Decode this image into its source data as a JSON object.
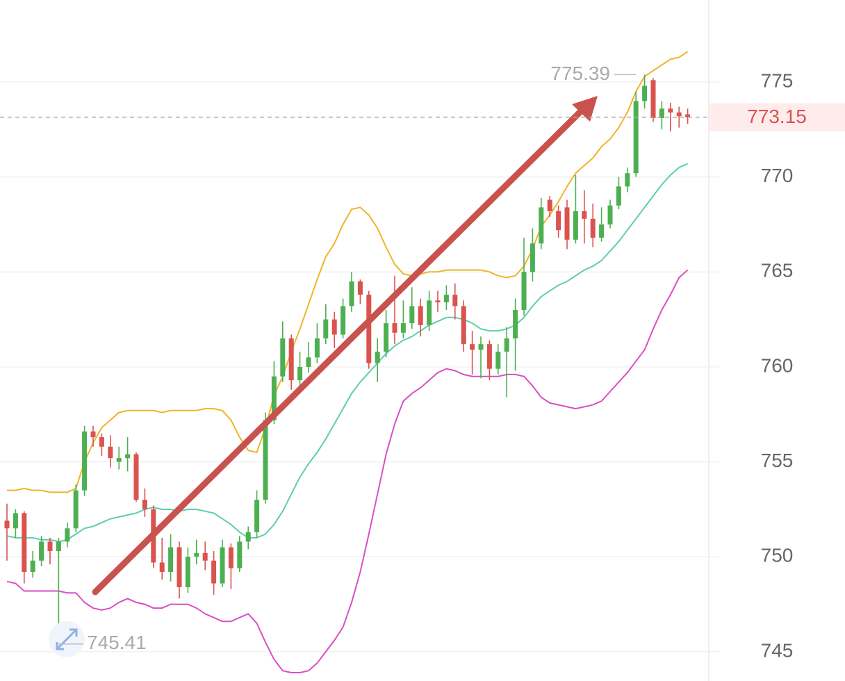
{
  "chart_data": {
    "type": "candlestick",
    "ylim": [
      743.46,
      779.32
    ],
    "yticks": [
      745,
      750,
      755,
      760,
      765,
      770,
      775
    ],
    "grid": true,
    "up_color": "#4caf50",
    "down_color": "#d9534f",
    "last_price": 773.15,
    "high": 775.39,
    "low": 745.41,
    "ohlc": [
      [
        751.9,
        752.8,
        749.8,
        751.5
      ],
      [
        751.5,
        752.5,
        751.0,
        752.3
      ],
      [
        752.3,
        752.4,
        748.6,
        749.2
      ],
      [
        749.2,
        750.3,
        748.9,
        749.8
      ],
      [
        749.8,
        751.1,
        749.5,
        750.8
      ],
      [
        750.8,
        751.0,
        749.6,
        750.3
      ],
      [
        750.3,
        751.0,
        745.41,
        750.8
      ],
      [
        750.8,
        751.8,
        750.5,
        751.5
      ],
      [
        751.5,
        753.8,
        751.3,
        753.5
      ],
      [
        753.5,
        756.9,
        753.2,
        756.6
      ],
      [
        756.6,
        756.9,
        755.8,
        756.3
      ],
      [
        756.3,
        756.5,
        755.3,
        755.8
      ],
      [
        755.8,
        756.4,
        754.7,
        755.2
      ],
      [
        755.0,
        755.8,
        754.6,
        755.2
      ],
      [
        755.2,
        756.3,
        754.5,
        755.4
      ],
      [
        755.4,
        755.5,
        752.9,
        753.0
      ],
      [
        753.0,
        753.6,
        752.1,
        752.5
      ],
      [
        752.5,
        752.7,
        749.4,
        749.7
      ],
      [
        749.7,
        751.0,
        748.8,
        749.2
      ],
      [
        749.2,
        751.2,
        748.7,
        750.5
      ],
      [
        750.5,
        750.8,
        747.8,
        748.4
      ],
      [
        748.4,
        750.5,
        748.1,
        750.0
      ],
      [
        750.0,
        750.9,
        749.6,
        750.2
      ],
      [
        750.2,
        750.8,
        749.3,
        749.8
      ],
      [
        749.8,
        750.3,
        748.0,
        748.6
      ],
      [
        748.6,
        750.9,
        748.4,
        750.5
      ],
      [
        750.5,
        750.7,
        748.3,
        749.4
      ],
      [
        749.4,
        751.1,
        749.2,
        750.8
      ],
      [
        750.8,
        751.6,
        750.4,
        751.3
      ],
      [
        751.3,
        753.5,
        751.0,
        753.0
      ],
      [
        753.0,
        757.6,
        752.8,
        757.2
      ],
      [
        757.2,
        760.3,
        757.0,
        759.5
      ],
      [
        759.5,
        762.4,
        759.2,
        761.5
      ],
      [
        761.5,
        761.7,
        758.8,
        759.3
      ],
      [
        759.3,
        760.8,
        759.0,
        760.0
      ],
      [
        760.0,
        761.3,
        759.7,
        760.5
      ],
      [
        760.5,
        762.3,
        760.2,
        761.5
      ],
      [
        761.5,
        763.3,
        761.2,
        762.5
      ],
      [
        762.5,
        762.9,
        761.0,
        761.7
      ],
      [
        761.7,
        763.6,
        761.5,
        763.2
      ],
      [
        763.2,
        765.0,
        762.9,
        764.5
      ],
      [
        764.5,
        764.6,
        763.3,
        763.8
      ],
      [
        763.8,
        764.0,
        759.9,
        760.2
      ],
      [
        760.2,
        761.5,
        759.2,
        760.8
      ],
      [
        760.8,
        763.0,
        760.5,
        762.3
      ],
      [
        762.3,
        764.8,
        761.2,
        761.8
      ],
      [
        761.8,
        763.5,
        761.5,
        762.3
      ],
      [
        762.3,
        764.2,
        762.0,
        763.2
      ],
      [
        763.2,
        763.6,
        761.6,
        762.2
      ],
      [
        762.2,
        764.0,
        761.9,
        763.5
      ],
      [
        763.5,
        764.0,
        762.9,
        763.4
      ],
      [
        763.4,
        764.3,
        763.0,
        763.8
      ],
      [
        763.8,
        764.4,
        762.5,
        763.2
      ],
      [
        763.2,
        763.5,
        760.8,
        761.2
      ],
      [
        761.2,
        761.9,
        759.6,
        760.9
      ],
      [
        760.9,
        761.6,
        759.4,
        761.2
      ],
      [
        761.2,
        761.4,
        759.3,
        759.9
      ],
      [
        759.9,
        761.2,
        759.6,
        760.8
      ],
      [
        760.8,
        762.1,
        758.4,
        761.5
      ],
      [
        761.5,
        763.6,
        759.8,
        763.0
      ],
      [
        763.0,
        766.8,
        762.7,
        765.0
      ],
      [
        765.0,
        767.3,
        764.5,
        766.5
      ],
      [
        766.5,
        768.9,
        766.2,
        768.4
      ],
      [
        768.8,
        769.0,
        767.9,
        768.2
      ],
      [
        768.2,
        768.5,
        766.8,
        767.2
      ],
      [
        768.4,
        768.8,
        766.2,
        766.7
      ],
      [
        766.7,
        770.1,
        766.5,
        768.2
      ],
      [
        768.2,
        769.3,
        766.5,
        767.8
      ],
      [
        767.8,
        768.6,
        766.3,
        766.8
      ],
      [
        766.8,
        768.4,
        766.6,
        767.5
      ],
      [
        767.5,
        768.8,
        767.3,
        768.5
      ],
      [
        768.5,
        770.0,
        768.3,
        769.5
      ],
      [
        769.5,
        770.5,
        769.2,
        770.2
      ],
      [
        770.2,
        774.5,
        770.0,
        774.0
      ],
      [
        774.0,
        775.39,
        773.6,
        774.8
      ],
      [
        775.1,
        775.2,
        772.9,
        773.1
      ],
      [
        773.1,
        774.0,
        772.5,
        773.6
      ],
      [
        773.6,
        773.9,
        772.4,
        773.4
      ],
      [
        773.4,
        773.7,
        772.6,
        773.2
      ],
      [
        773.3,
        773.6,
        772.8,
        773.15
      ]
    ],
    "bands": [
      {
        "color": "#f0b429",
        "values": [
          753.5,
          753.5,
          753.6,
          753.5,
          753.5,
          753.4,
          753.4,
          753.4,
          753.6,
          755,
          756,
          756.8,
          757.2,
          757.6,
          757.7,
          757.7,
          757.7,
          757.7,
          757.6,
          757.7,
          757.7,
          757.7,
          757.7,
          757.8,
          757.8,
          757.7,
          757.2,
          756.3,
          755.6,
          755.5,
          756.8,
          758.5,
          759.5,
          760.8,
          762.0,
          763.3,
          764.6,
          765.8,
          766.5,
          767.5,
          768.3,
          768.4,
          768.0,
          767.3,
          766.3,
          765.4,
          764.9,
          764.8,
          764.9,
          765.0,
          765.0,
          765.1,
          765.1,
          765.1,
          765.1,
          765.1,
          765.0,
          764.8,
          764.7,
          764.8,
          765.3,
          766.2,
          767.4,
          768.0,
          768.7,
          769.5,
          770.2,
          770.6,
          771.0,
          771.6,
          772.0,
          772.6,
          773.4,
          774.5,
          775.3,
          775.6,
          775.9,
          776.2,
          776.3,
          776.6
        ]
      },
      {
        "color": "#5ccfa8",
        "values": [
          751.1,
          751.0,
          751.0,
          751.0,
          750.9,
          750.9,
          750.8,
          750.9,
          751.2,
          751.5,
          751.6,
          751.8,
          752.0,
          752.1,
          752.2,
          752.3,
          752.5,
          752.6,
          752.5,
          752.5,
          752.4,
          752.5,
          752.5,
          752.4,
          752.3,
          752.0,
          751.7,
          751.3,
          751.0,
          751.0,
          751.2,
          751.7,
          752.4,
          753.3,
          754.2,
          754.9,
          755.5,
          756.2,
          757.0,
          757.8,
          758.6,
          759.2,
          759.7,
          760.2,
          760.7,
          761.1,
          761.4,
          761.6,
          761.9,
          762.2,
          762.4,
          762.6,
          762.6,
          762.5,
          762.3,
          762.0,
          761.9,
          761.9,
          762.0,
          762.2,
          762.6,
          763.2,
          763.7,
          764.0,
          764.3,
          764.5,
          764.8,
          765.1,
          765.3,
          765.6,
          766.1,
          766.6,
          767.2,
          767.8,
          768.4,
          769.0,
          769.6,
          770.1,
          770.5,
          770.7
        ]
      },
      {
        "color": "#d94fc4",
        "values": [
          748.7,
          748.6,
          748.2,
          748.2,
          748.2,
          748.2,
          748.2,
          748.1,
          748.1,
          747.6,
          747.3,
          747.2,
          747.3,
          747.6,
          747.8,
          747.6,
          747.5,
          747.3,
          747.3,
          747.5,
          747.5,
          747.5,
          747.3,
          747.0,
          746.8,
          746.6,
          746.6,
          746.8,
          747.0,
          746.5,
          745.5,
          744.6,
          744.0,
          743.9,
          743.9,
          744.0,
          744.4,
          745.0,
          745.6,
          746.3,
          747.6,
          749.2,
          751.2,
          753.3,
          755.4,
          757.0,
          758.2,
          758.6,
          758.9,
          759.3,
          759.7,
          759.9,
          759.8,
          759.6,
          759.5,
          759.5,
          759.5,
          759.5,
          759.6,
          759.6,
          759.5,
          759.0,
          758.4,
          758.1,
          758.0,
          757.9,
          757.8,
          757.9,
          758.0,
          758.2,
          758.7,
          759.2,
          759.7,
          760.3,
          760.9,
          762.0,
          763.0,
          763.8,
          764.7,
          765.1
        ]
      }
    ]
  }
}
